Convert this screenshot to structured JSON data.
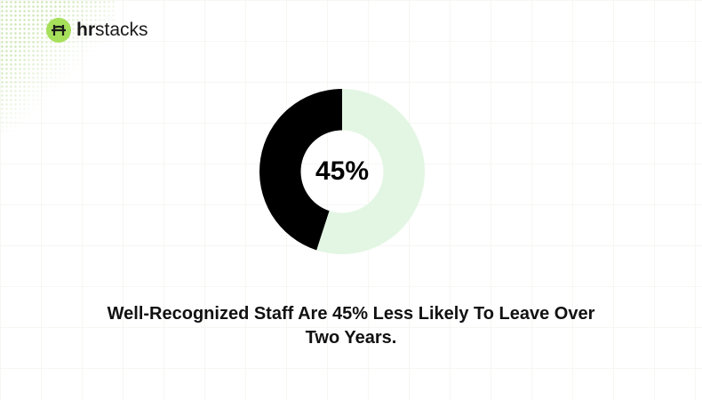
{
  "brand": {
    "prefix": "hr",
    "suffix": "stacks"
  },
  "chart_data": {
    "type": "pie",
    "hole": 0.5,
    "values": [
      45,
      55
    ],
    "value_labels": [
      "45%",
      null
    ],
    "colors": [
      "#000000",
      "#e3f6e3"
    ],
    "title": "Well-Recognized Staff Are 45% Less Likely To Leave Over Two Years."
  }
}
